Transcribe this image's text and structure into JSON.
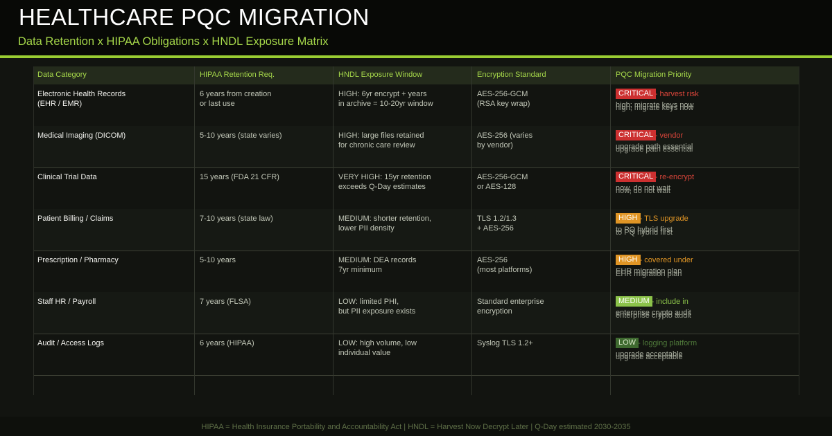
{
  "header": {
    "title": "HEALTHCARE PQC MIGRATION",
    "subtitle": "Data Retention  x  HIPAA Obligations  x  HNDL Exposure Matrix"
  },
  "colors": {
    "accent": "#9acd32",
    "critical": "#cc3030",
    "high": "#e09525",
    "medium": "#8cc34a",
    "low": "#3f6a30"
  },
  "table": {
    "columns": [
      "Data Category",
      "HIPAA Retention Req.",
      "HNDL Exposure Window",
      "Encryption Standard",
      "PQC Migration Priority"
    ],
    "rows": [
      {
        "category": "Electronic Health Records\n(EHR / EMR)",
        "retention": "6 years from creation\nor last use",
        "exposure": "HIGH: 6yr encrypt + years\nin archive = 10-20yr window",
        "encryption": "AES-256-GCM\n(RSA key wrap)",
        "priority": "CRITICAL",
        "priority_note": " - harvest risk",
        "priority_detail": "high; migrate keys now"
      },
      {
        "category": "Medical Imaging (DICOM)",
        "retention": "5-10 years (state varies)",
        "exposure": "HIGH: large files retained\nfor chronic care review",
        "encryption": "AES-256 (varies\nby vendor)",
        "priority": "CRITICAL",
        "priority_note": " - vendor",
        "priority_detail": "upgrade path essential"
      },
      {
        "category": "Clinical Trial Data",
        "retention": "15 years (FDA 21 CFR)",
        "exposure": "VERY HIGH: 15yr retention\nexceeds Q-Day estimates",
        "encryption": "AES-256-GCM\nor AES-128",
        "priority": "CRITICAL",
        "priority_note": " - re-encrypt",
        "priority_detail": "now, do not wait"
      },
      {
        "category": "Patient Billing / Claims",
        "retention": "7-10 years (state law)",
        "exposure": "MEDIUM: shorter retention,\nlower PII density",
        "encryption": "TLS 1.2/1.3\n+ AES-256",
        "priority": "HIGH",
        "priority_note": " - TLS upgrade",
        "priority_detail": "to PQ hybrid first"
      },
      {
        "category": "Prescription / Pharmacy",
        "retention": "5-10 years",
        "exposure": "MEDIUM: DEA records\n7yr minimum",
        "encryption": "AES-256\n(most platforms)",
        "priority": "HIGH",
        "priority_note": " - covered under",
        "priority_detail": "EHR migration plan"
      },
      {
        "category": "Staff HR / Payroll",
        "retention": "7 years (FLSA)",
        "exposure": "LOW: limited PHI,\nbut PII exposure exists",
        "encryption": "Standard enterprise\nencryption",
        "priority": "MEDIUM",
        "priority_note": " - include in",
        "priority_detail": "enterprise crypto audit"
      },
      {
        "category": "Audit / Access Logs",
        "retention": "6 years (HIPAA)",
        "exposure": "LOW: high volume, low\nindividual value",
        "encryption": "Syslog TLS 1.2+",
        "priority": "LOW",
        "priority_note": " - logging platform",
        "priority_detail": "upgrade acceptable"
      }
    ]
  },
  "footer": {
    "note": "HIPAA = Health Insurance Portability and Accountability Act  |  HNDL = Harvest Now Decrypt Later  |  Q-Day estimated 2030-2035"
  }
}
